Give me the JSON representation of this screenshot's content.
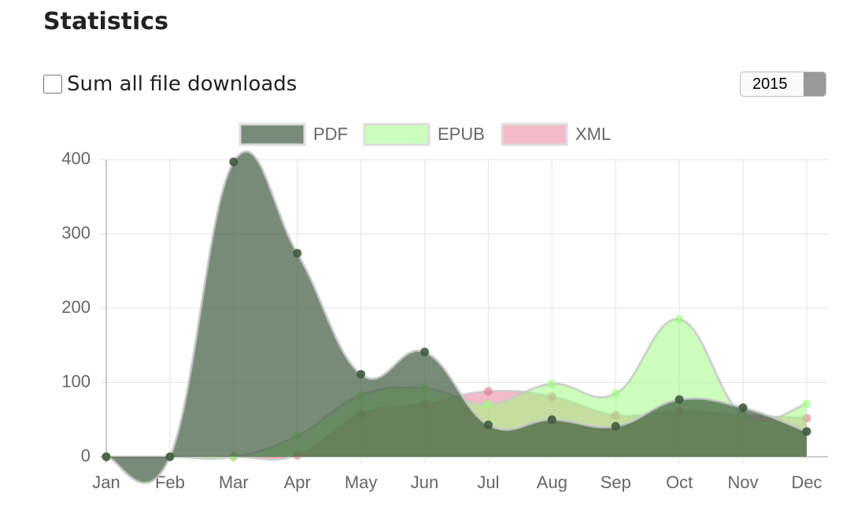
{
  "header": {
    "title": "Statistics"
  },
  "controls": {
    "sum_label": "Sum all file downloads",
    "sum_checked": false,
    "year": "2015"
  },
  "chart_data": {
    "type": "area-spline",
    "categories": [
      "Jan",
      "Feb",
      "Mar",
      "Apr",
      "May",
      "Jun",
      "Jul",
      "Aug",
      "Sep",
      "Oct",
      "Nov",
      "Dec"
    ],
    "series": [
      {
        "name": "PDF",
        "color": "#3f5a3f",
        "values": [
          0,
          0,
          397,
          274,
          111,
          141,
          43,
          50,
          41,
          77,
          66,
          34
        ]
      },
      {
        "name": "EPUB",
        "color": "#97ff78",
        "values": [
          0,
          0,
          0,
          28,
          83,
          92,
          71,
          98,
          85,
          185,
          56,
          71
        ]
      },
      {
        "name": "XML",
        "color": "#e8758f",
        "values": [
          0,
          0,
          0,
          2,
          58,
          71,
          88,
          81,
          56,
          61,
          56,
          52
        ]
      }
    ],
    "ylim": [
      0,
      400
    ],
    "yticks": [
      0,
      100,
      200,
      300,
      400
    ],
    "grid": true,
    "legend": "top"
  }
}
